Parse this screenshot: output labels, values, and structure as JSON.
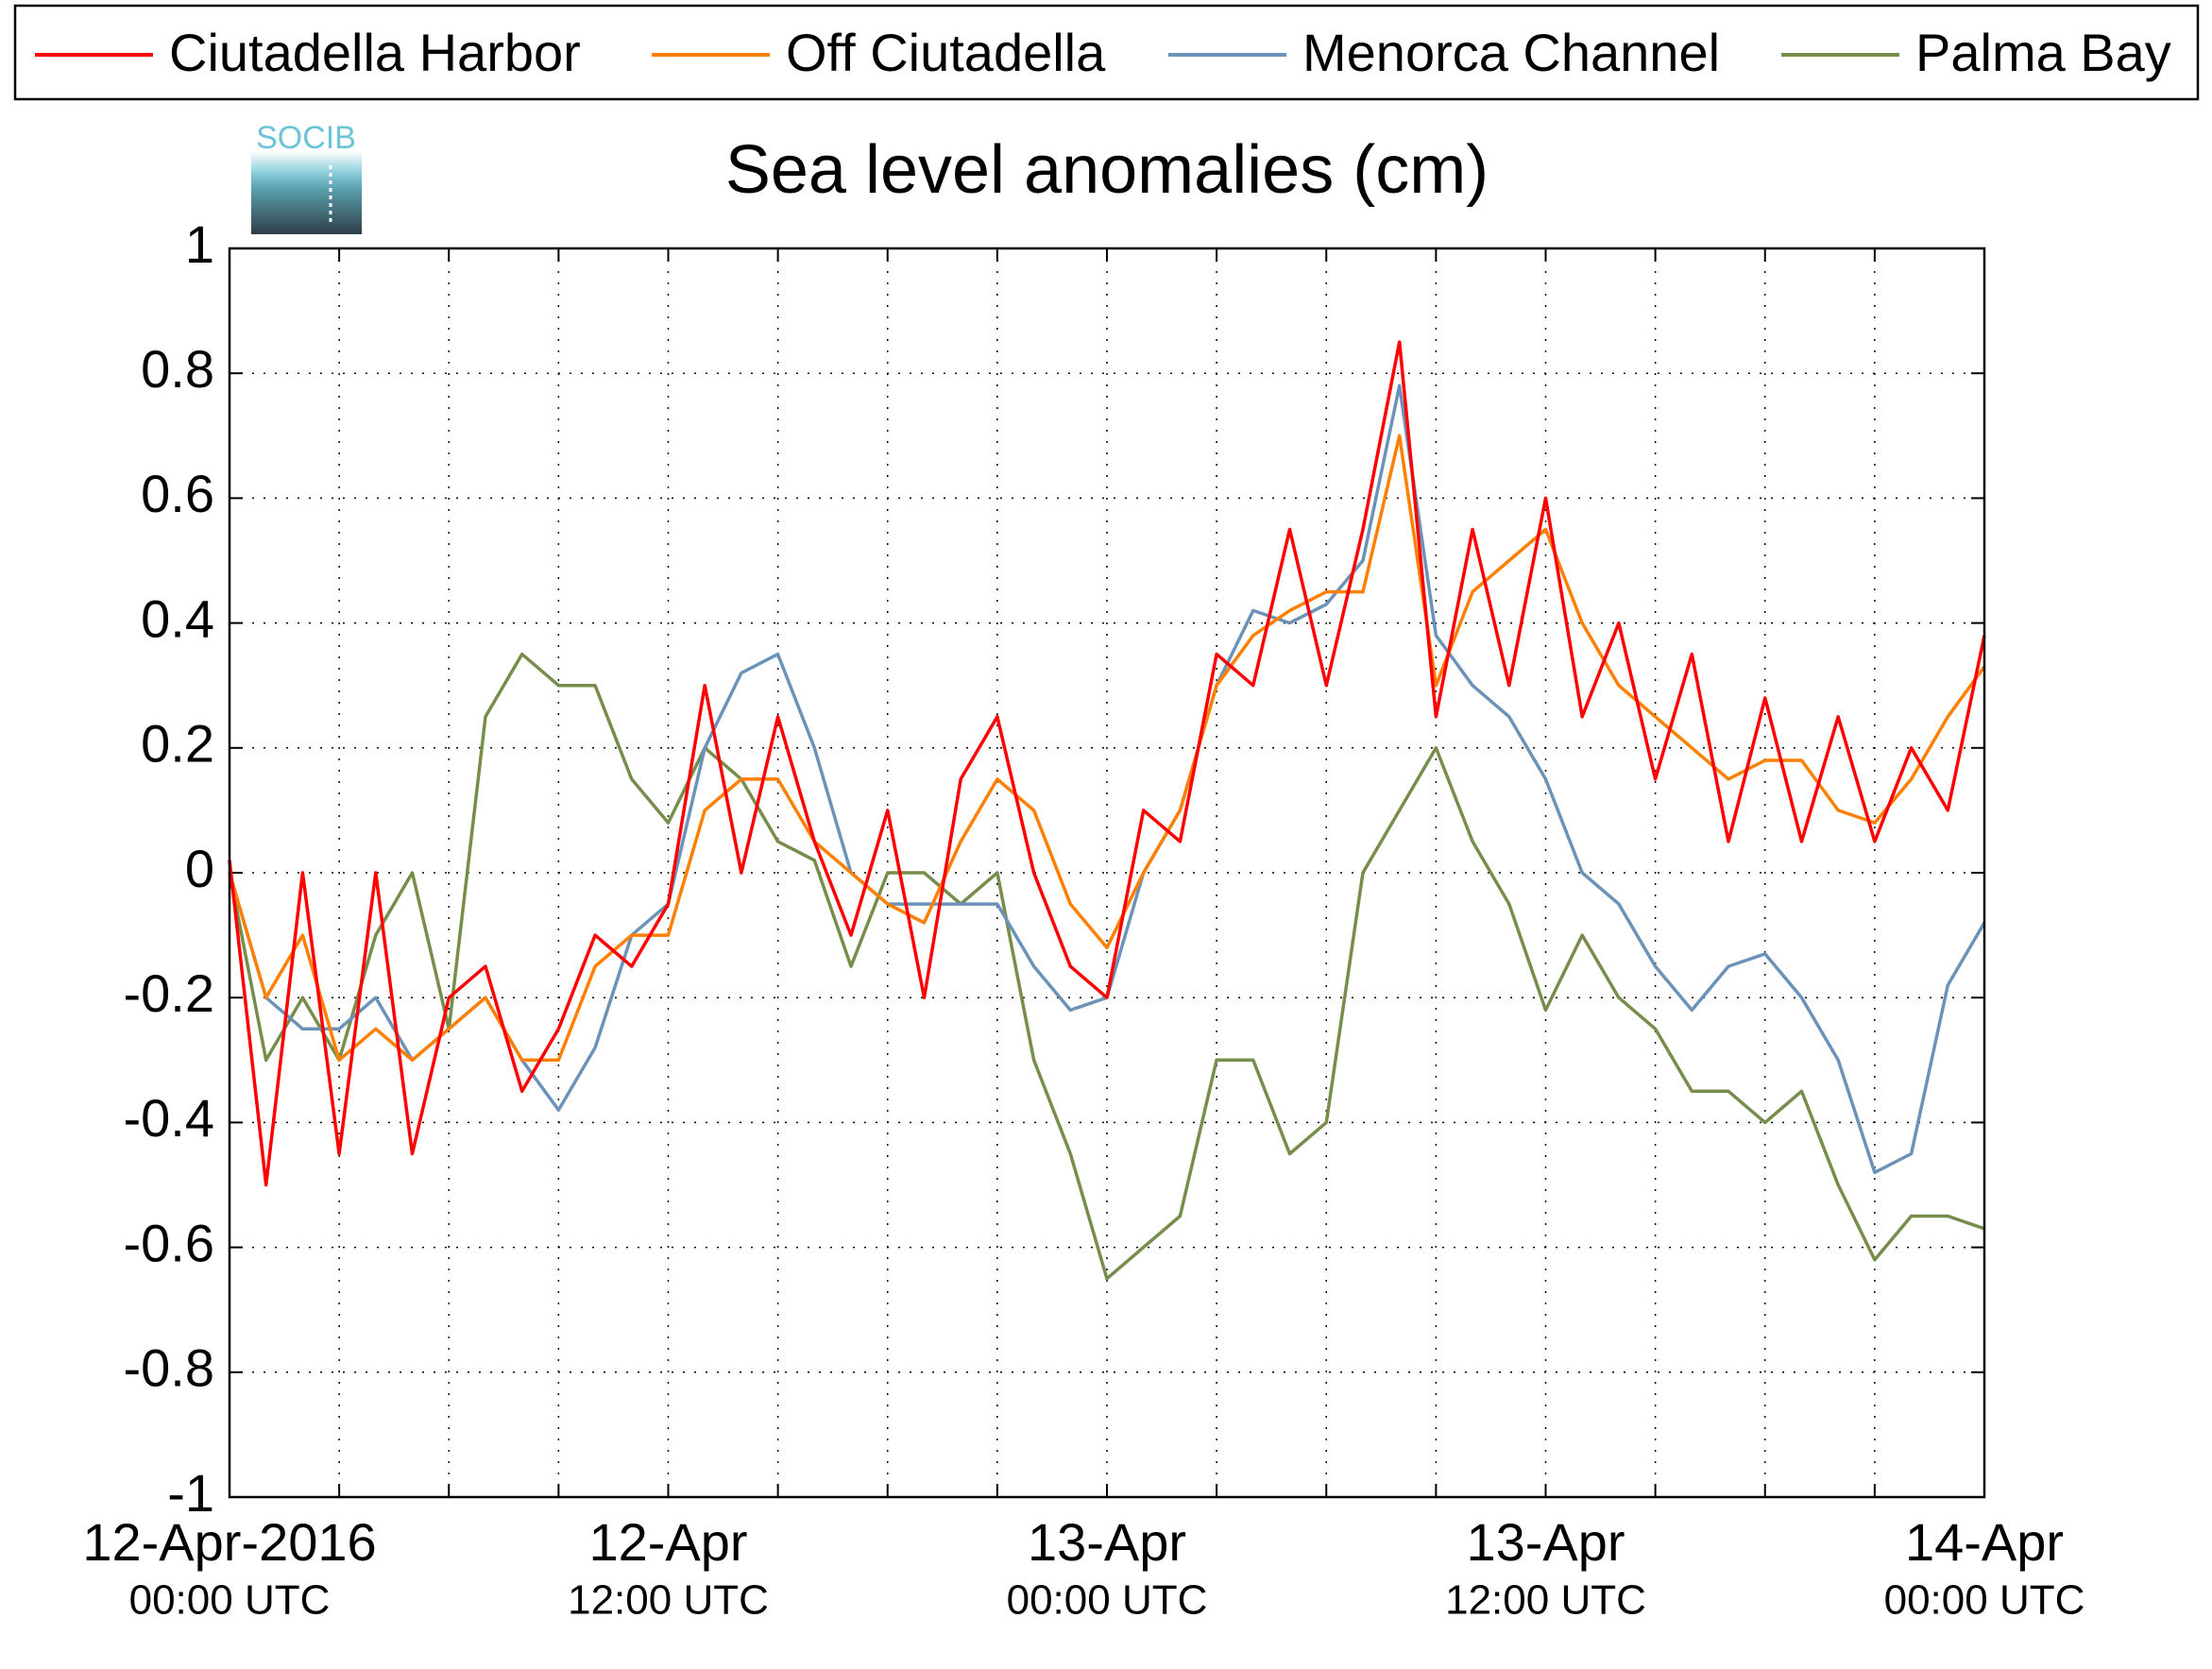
{
  "chart_data": {
    "type": "line",
    "title": "Sea level anomalies (cm)",
    "logo": "SOCIB",
    "legend": "top",
    "grid": true,
    "x": [
      "2016-04-12T00:00",
      "2016-04-12T01:00",
      "2016-04-12T02:00",
      "2016-04-12T03:00",
      "2016-04-12T04:00",
      "2016-04-12T05:00",
      "2016-04-12T06:00",
      "2016-04-12T07:00",
      "2016-04-12T08:00",
      "2016-04-12T09:00",
      "2016-04-12T10:00",
      "2016-04-12T11:00",
      "2016-04-12T12:00",
      "2016-04-12T13:00",
      "2016-04-12T14:00",
      "2016-04-12T15:00",
      "2016-04-12T16:00",
      "2016-04-12T17:00",
      "2016-04-12T18:00",
      "2016-04-12T19:00",
      "2016-04-12T20:00",
      "2016-04-12T21:00",
      "2016-04-12T22:00",
      "2016-04-12T23:00",
      "2016-04-13T00:00",
      "2016-04-13T01:00",
      "2016-04-13T02:00",
      "2016-04-13T03:00",
      "2016-04-13T04:00",
      "2016-04-13T05:00",
      "2016-04-13T06:00",
      "2016-04-13T07:00",
      "2016-04-13T08:00",
      "2016-04-13T09:00",
      "2016-04-13T10:00",
      "2016-04-13T11:00",
      "2016-04-13T12:00",
      "2016-04-13T13:00",
      "2016-04-13T14:00",
      "2016-04-13T15:00",
      "2016-04-13T16:00",
      "2016-04-13T17:00",
      "2016-04-13T18:00",
      "2016-04-13T19:00",
      "2016-04-13T20:00",
      "2016-04-13T21:00",
      "2016-04-13T22:00",
      "2016-04-13T23:00",
      "2016-04-14T00:00"
    ],
    "series": [
      {
        "name": "Ciutadella Harbor",
        "color": "#ff0000",
        "values": [
          0.02,
          -0.5,
          0.0,
          -0.45,
          0.0,
          -0.45,
          -0.2,
          -0.15,
          -0.35,
          -0.25,
          -0.1,
          -0.15,
          -0.05,
          0.3,
          0.0,
          0.25,
          0.05,
          -0.1,
          0.1,
          -0.2,
          0.15,
          0.25,
          0.0,
          -0.15,
          -0.2,
          0.1,
          0.05,
          0.35,
          0.3,
          0.55,
          0.3,
          0.55,
          0.85,
          0.25,
          0.55,
          0.3,
          0.6,
          0.25,
          0.4,
          0.15,
          0.35,
          0.05,
          0.28,
          0.05,
          0.25,
          0.05,
          0.2,
          0.1,
          0.38
        ]
      },
      {
        "name": "Off Ciutadella",
        "color": "#ff8000",
        "values": [
          0.0,
          -0.2,
          -0.1,
          -0.3,
          -0.25,
          -0.3,
          -0.25,
          -0.2,
          -0.3,
          -0.3,
          -0.15,
          -0.1,
          -0.1,
          0.1,
          0.15,
          0.15,
          0.05,
          0.0,
          -0.05,
          -0.08,
          0.05,
          0.15,
          0.1,
          -0.05,
          -0.12,
          0.0,
          0.1,
          0.3,
          0.38,
          0.42,
          0.45,
          0.45,
          0.7,
          0.3,
          0.45,
          0.5,
          0.55,
          0.4,
          0.3,
          0.25,
          0.2,
          0.15,
          0.18,
          0.18,
          0.1,
          0.08,
          0.15,
          0.25,
          0.33
        ]
      },
      {
        "name": "Menorca Channel",
        "color": "#6b93b9",
        "values": [
          0.0,
          -0.2,
          -0.25,
          -0.25,
          -0.2,
          -0.3,
          -0.25,
          -0.2,
          -0.3,
          -0.38,
          -0.28,
          -0.1,
          -0.05,
          0.2,
          0.32,
          0.35,
          0.2,
          0.0,
          -0.05,
          -0.05,
          -0.05,
          -0.05,
          -0.15,
          -0.22,
          -0.2,
          0.0,
          0.1,
          0.3,
          0.42,
          0.4,
          0.43,
          0.5,
          0.78,
          0.38,
          0.3,
          0.25,
          0.15,
          0.0,
          -0.05,
          -0.15,
          -0.22,
          -0.15,
          -0.13,
          -0.2,
          -0.3,
          -0.48,
          -0.45,
          -0.18,
          -0.08
        ]
      },
      {
        "name": "Palma Bay",
        "color": "#778d4b",
        "values": [
          0.0,
          -0.3,
          -0.2,
          -0.3,
          -0.1,
          0.0,
          -0.25,
          0.25,
          0.35,
          0.3,
          0.3,
          0.15,
          0.08,
          0.2,
          0.15,
          0.05,
          0.02,
          -0.15,
          0.0,
          0.0,
          -0.05,
          0.0,
          -0.3,
          -0.45,
          -0.65,
          -0.6,
          -0.55,
          -0.3,
          -0.3,
          -0.45,
          -0.4,
          0.0,
          0.1,
          0.2,
          0.05,
          -0.05,
          -0.22,
          -0.1,
          -0.2,
          -0.25,
          -0.35,
          -0.35,
          -0.4,
          -0.35,
          -0.5,
          -0.62,
          -0.55,
          -0.55,
          -0.57
        ]
      }
    ],
    "xlim": [
      "2016-04-12T00:00",
      "2016-04-14T00:00"
    ],
    "xticks": [
      {
        "value": "2016-04-12T00:00",
        "label": [
          "12-Apr-2016",
          "00:00 UTC"
        ]
      },
      {
        "value": "2016-04-12T12:00",
        "label": [
          "12-Apr",
          "12:00 UTC"
        ]
      },
      {
        "value": "2016-04-13T00:00",
        "label": [
          "13-Apr",
          "00:00 UTC"
        ]
      },
      {
        "value": "2016-04-13T12:00",
        "label": [
          "13-Apr",
          "12:00 UTC"
        ]
      },
      {
        "value": "2016-04-14T00:00",
        "label": [
          "14-Apr",
          "00:00 UTC"
        ]
      }
    ],
    "xminor_ticks": [
      "2016-04-12T03:00",
      "2016-04-12T06:00",
      "2016-04-12T09:00",
      "2016-04-12T15:00",
      "2016-04-12T18:00",
      "2016-04-12T21:00",
      "2016-04-13T03:00",
      "2016-04-13T06:00",
      "2016-04-13T09:00",
      "2016-04-13T15:00",
      "2016-04-13T18:00",
      "2016-04-13T21:00"
    ],
    "ylim": [
      -1,
      1
    ],
    "yticks": [
      -1,
      -0.8,
      -0.6,
      -0.4,
      -0.2,
      0,
      0.2,
      0.4,
      0.6,
      0.8,
      1
    ]
  }
}
